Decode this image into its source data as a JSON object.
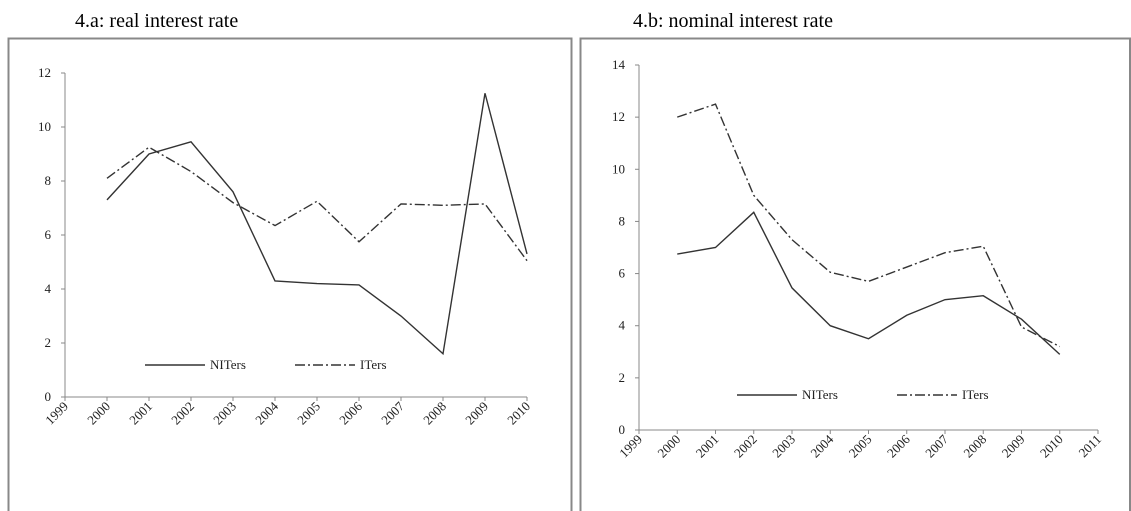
{
  "chart_data": [
    {
      "type": "line",
      "title": "4.a: real interest rate",
      "x": [
        2000,
        2001,
        2002,
        2003,
        2004,
        2005,
        2006,
        2007,
        2008,
        2009,
        2010
      ],
      "xlim": [
        1999,
        2010
      ],
      "xticks": [
        1999,
        2000,
        2001,
        2002,
        2003,
        2004,
        2005,
        2006,
        2007,
        2008,
        2009,
        2010
      ],
      "ylim": [
        0,
        12
      ],
      "yticks": [
        0,
        2,
        4,
        6,
        8,
        10,
        12
      ],
      "legend": "bottom",
      "series": [
        {
          "name": "NITers",
          "color": "#333333",
          "dash": "solid",
          "values": [
            7.3,
            9.0,
            9.45,
            7.6,
            4.3,
            4.2,
            4.15,
            3.0,
            1.6,
            11.25,
            5.3
          ]
        },
        {
          "name": "ITers",
          "color": "#333333",
          "dash": "dashdot",
          "values": [
            8.1,
            9.25,
            8.35,
            7.2,
            6.35,
            7.25,
            5.75,
            7.15,
            7.1,
            7.15,
            5.05
          ]
        }
      ]
    },
    {
      "type": "line",
      "title": "4.b: nominal interest rate",
      "x": [
        2000,
        2001,
        2002,
        2003,
        2004,
        2005,
        2006,
        2007,
        2008,
        2009,
        2010
      ],
      "xlim": [
        1999,
        2011
      ],
      "xticks": [
        1999,
        2000,
        2001,
        2002,
        2003,
        2004,
        2005,
        2006,
        2007,
        2008,
        2009,
        2010,
        2011
      ],
      "ylim": [
        0,
        14
      ],
      "yticks": [
        0,
        2,
        4,
        6,
        8,
        10,
        12,
        14
      ],
      "legend": "bottom",
      "series": [
        {
          "name": "NITers",
          "color": "#333333",
          "dash": "solid",
          "values": [
            6.75,
            7.0,
            8.35,
            5.45,
            4.0,
            3.5,
            4.4,
            5.0,
            5.15,
            4.25,
            2.9
          ]
        },
        {
          "name": "ITers",
          "color": "#333333",
          "dash": "dashdot",
          "values": [
            12.0,
            12.5,
            9.0,
            7.3,
            6.05,
            5.7,
            6.25,
            6.8,
            7.05,
            3.95,
            3.2
          ]
        }
      ]
    }
  ]
}
